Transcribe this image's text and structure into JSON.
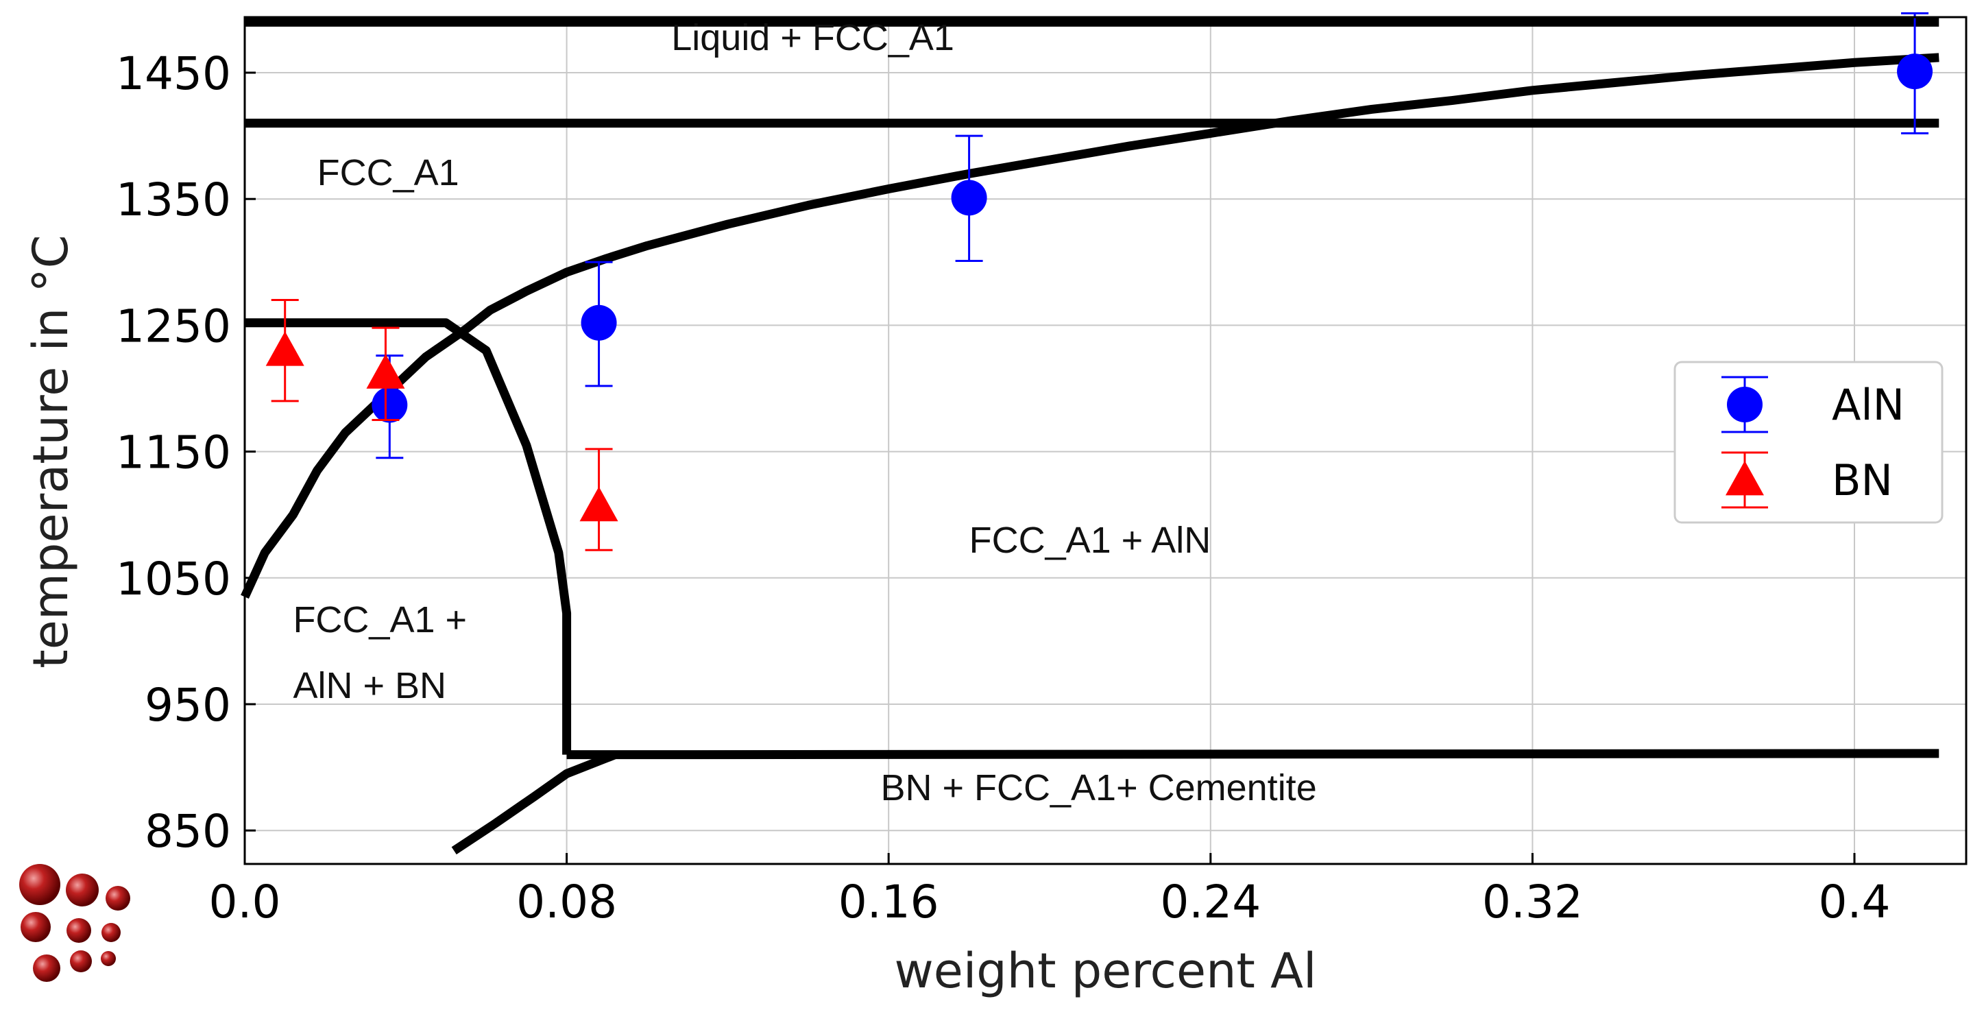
{
  "chart_data": {
    "type": "scatter",
    "title": "",
    "xlabel": "weight percent Al",
    "ylabel": "temperature in °C",
    "xlim": [
      0.0,
      0.43
    ],
    "ylim": [
      834,
      1490
    ],
    "grid": true,
    "x_ticks": [
      0.0,
      0.08,
      0.16,
      0.24,
      0.32,
      0.4
    ],
    "x_tick_labels": [
      "0.0",
      "0.08",
      "0.16",
      "0.24",
      "0.32",
      "0.4"
    ],
    "y_ticks": [
      850,
      950,
      1050,
      1150,
      1250,
      1350,
      1450
    ],
    "y_tick_labels": [
      "850",
      "950",
      "1050",
      "1150",
      "1250",
      "1350",
      "1450"
    ],
    "legend_position": "right",
    "series": [
      {
        "name": "AlN",
        "marker": "circle",
        "color": "#0000ff",
        "points": [
          {
            "x": 0.036,
            "y": 1187,
            "err_low": 1145,
            "err_high": 1226
          },
          {
            "x": 0.088,
            "y": 1252,
            "err_low": 1202,
            "err_high": 1300
          },
          {
            "x": 0.18,
            "y": 1351,
            "err_low": 1301,
            "err_high": 1400
          },
          {
            "x": 0.415,
            "y": 1451,
            "err_low": 1402,
            "err_high": 1497
          }
        ]
      },
      {
        "name": "BN",
        "marker": "triangle",
        "color": "#ff0000",
        "points": [
          {
            "x": 0.01,
            "y": 1230,
            "err_low": 1190,
            "err_high": 1270
          },
          {
            "x": 0.035,
            "y": 1212,
            "err_low": 1175,
            "err_high": 1248
          },
          {
            "x": 0.088,
            "y": 1107,
            "err_low": 1072,
            "err_high": 1152
          }
        ]
      }
    ],
    "phase_boundaries": [
      {
        "name": "top-frame-line",
        "points": [
          [
            0.0,
            1490
          ],
          [
            0.421,
            1490
          ]
        ]
      },
      {
        "name": "liquidus-line",
        "points": [
          [
            0.0,
            1410
          ],
          [
            0.421,
            1410
          ]
        ]
      },
      {
        "name": "aln-solvus",
        "points": [
          [
            0.0,
            1035
          ],
          [
            0.005,
            1070
          ],
          [
            0.012,
            1100
          ],
          [
            0.018,
            1135
          ],
          [
            0.025,
            1165
          ],
          [
            0.035,
            1195
          ],
          [
            0.045,
            1225
          ],
          [
            0.055,
            1247
          ],
          [
            0.061,
            1262
          ],
          [
            0.07,
            1277
          ],
          [
            0.08,
            1292
          ],
          [
            0.09,
            1303
          ],
          [
            0.1,
            1313
          ],
          [
            0.12,
            1330
          ],
          [
            0.14,
            1345
          ],
          [
            0.16,
            1358
          ],
          [
            0.18,
            1370
          ],
          [
            0.2,
            1381
          ],
          [
            0.22,
            1392
          ],
          [
            0.24,
            1402
          ],
          [
            0.26,
            1412
          ],
          [
            0.28,
            1421
          ],
          [
            0.3,
            1428
          ],
          [
            0.32,
            1436
          ],
          [
            0.34,
            1442
          ],
          [
            0.36,
            1448
          ],
          [
            0.38,
            1453
          ],
          [
            0.4,
            1458
          ],
          [
            0.421,
            1462
          ]
        ]
      },
      {
        "name": "bn-solvus",
        "points": [
          [
            0.0,
            1252
          ],
          [
            0.05,
            1252
          ],
          [
            0.06,
            1230
          ],
          [
            0.07,
            1155
          ],
          [
            0.078,
            1070
          ],
          [
            0.08,
            1022
          ],
          [
            0.08,
            910
          ]
        ]
      },
      {
        "name": "cementite-line",
        "points": [
          [
            0.08,
            910
          ],
          [
            0.092,
            910
          ],
          [
            0.421,
            911
          ]
        ]
      },
      {
        "name": "lower-boundary",
        "points": [
          [
            0.052,
            834
          ],
          [
            0.062,
            855
          ],
          [
            0.072,
            877
          ],
          [
            0.08,
            895
          ],
          [
            0.092,
            910
          ]
        ]
      }
    ],
    "annotations": [
      {
        "text": "Liquid +  FCC_A1",
        "x": 0.106,
        "y": 1468
      },
      {
        "text": "FCC_A1",
        "x": 0.018,
        "y": 1361
      },
      {
        "text": "FCC_A1 + AlN",
        "x": 0.18,
        "y": 1070
      },
      {
        "text": "FCC_A1 +",
        "x": 0.012,
        "y": 1007
      },
      {
        "text": "AlN + BN",
        "x": 0.012,
        "y": 955
      },
      {
        "text": "BN + FCC_A1+ Cementite",
        "x": 0.158,
        "y": 874
      }
    ]
  }
}
